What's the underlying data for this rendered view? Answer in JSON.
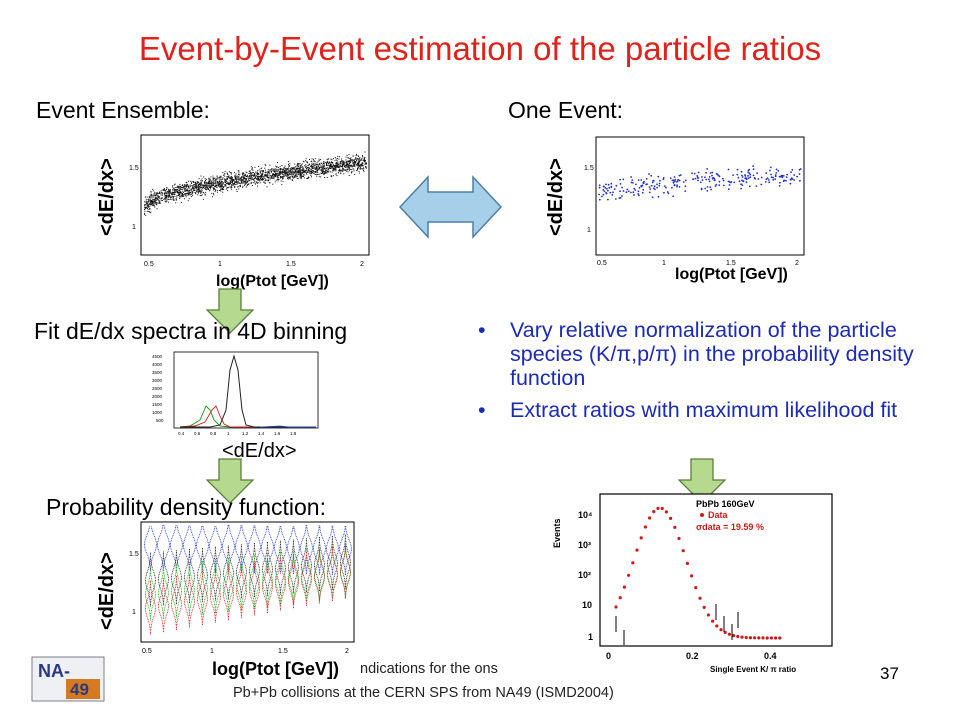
{
  "slide": {
    "title": "Event-by-Event estimation of the particle ratios",
    "page_number": "37"
  },
  "left": {
    "ensemble_header": "Event Ensemble:",
    "fit_header": "Fit dE/dx spectra in 4D binning",
    "pdf_header": "Probability density function:",
    "ylabel": "<dE/dx>",
    "xlabel": "log(Ptot [GeV])",
    "fit_xlabel": "<dE/dx>"
  },
  "right": {
    "one_event_header": "One Event:",
    "ylabel": "<dE/dx>",
    "xlabel": "log(Ptot [GeV])",
    "bullets": [
      "Vary relative normalization of the particle species (K/π,p/π) in the probability density function",
      "Extract  ratios with maximum likelihood fit"
    ]
  },
  "plots": {
    "scatter_xticks": [
      "0.5",
      "1",
      "1.5",
      "2"
    ],
    "scatter_yticks": [
      "1.5",
      "1"
    ],
    "fit_yticks": [
      "4500",
      "4000",
      "3500",
      "3000",
      "2500",
      "2000",
      "1500",
      "1000",
      "500"
    ],
    "fit_xticks": [
      "0.4",
      "0.6",
      "0.8",
      "1",
      "1.2",
      "1.4",
      "1.6",
      "1.8"
    ],
    "ratio_legend_title": "PbPb 160GeV",
    "ratio_legend_data": "Data",
    "ratio_legend_sigma": "σdata = 19.59 %",
    "ratio_ylabel": "Events",
    "ratio_xlabel": "Single Event K/ π ratio",
    "ratio_xticks": [
      "0",
      "0.2",
      "0.4"
    ],
    "ratio_yticks": [
      "10⁴",
      "10³",
      "10²",
      "10",
      "1"
    ]
  },
  "footer": {
    "line1_visible": "ndications for the ons",
    "line2": "Pb+Pb collisions at the CERN SPS from NA49   (ISMD2004)",
    "logo_text_top": "NA-",
    "logo_text_bottom": "49"
  },
  "colors": {
    "title": "#e0221a",
    "bullet_text": "#1c2ab8",
    "arrow_fill": "#b5d98e",
    "double_arrow_fill": "#a6d0ea"
  }
}
